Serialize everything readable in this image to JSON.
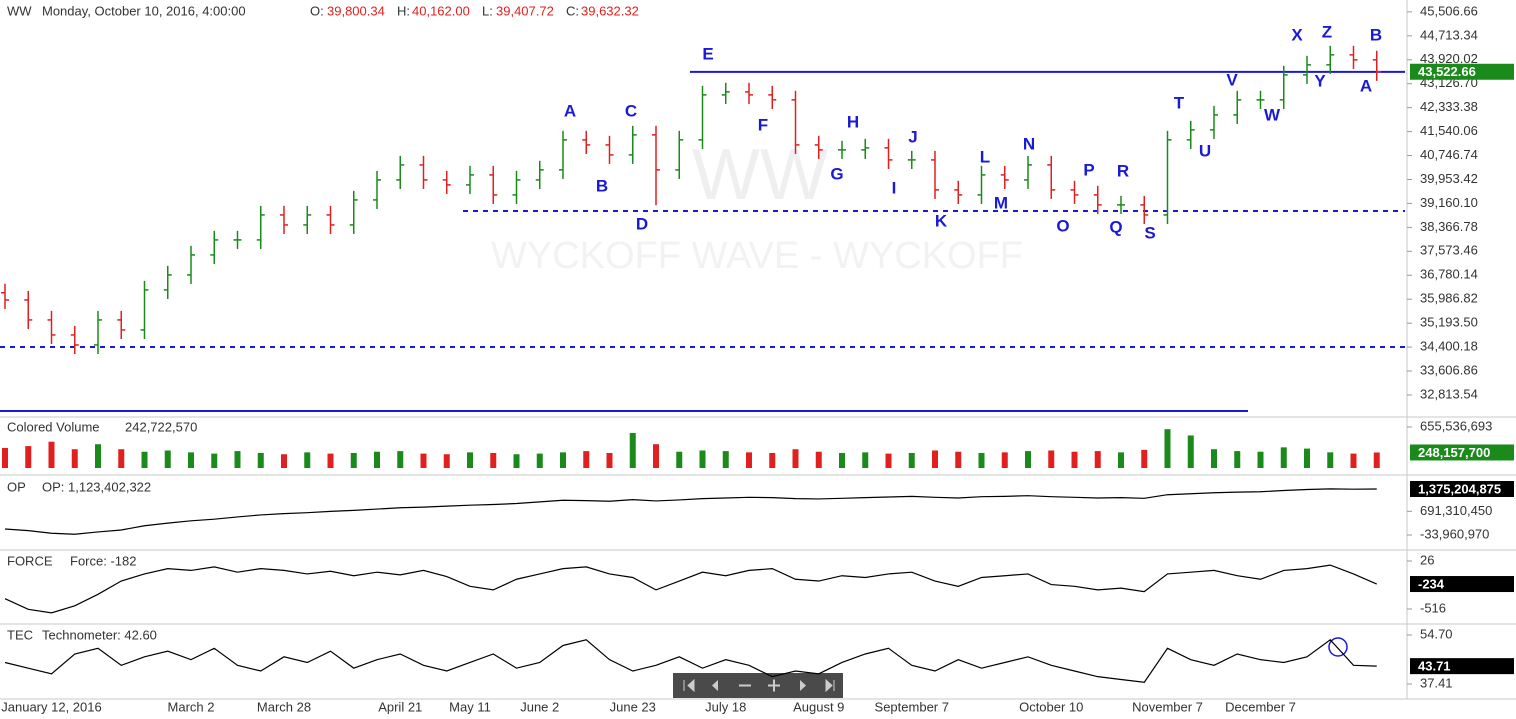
{
  "chart_data": [
    {
      "type": "ohlc",
      "title": "WW",
      "subtitle": "Monday, October 10, 2016, 4:00:00",
      "readout": [
        "O:",
        "39,800.34",
        "H:",
        "40,162.00",
        "L:",
        "39,407.72",
        "C:",
        "39,632.32"
      ],
      "watermark": [
        "WW",
        "WYCKOFF WAVE - WYCKOFF"
      ],
      "up_color": "#1a8a1a",
      "down_color": "#e0201e",
      "categories": [
        null,
        null,
        "January 12, 2016",
        null,
        null,
        null,
        null,
        null,
        "March 2",
        null,
        null,
        null,
        "March 28",
        null,
        null,
        null,
        null,
        "April 21",
        null,
        null,
        "May 11",
        null,
        null,
        "June 2",
        null,
        null,
        null,
        "June 23",
        null,
        null,
        null,
        "July 18",
        null,
        null,
        null,
        "August 9",
        null,
        null,
        null,
        "September 7",
        null,
        null,
        null,
        null,
        null,
        "October 10",
        null,
        null,
        null,
        null,
        "November 7",
        null,
        null,
        null,
        "December 7",
        null,
        null,
        null,
        null,
        null
      ],
      "open": [
        36200,
        35962,
        35300,
        34802,
        34471,
        35300,
        34968,
        36294,
        36791,
        37454,
        37951,
        37951,
        38779,
        38448,
        38779,
        38448,
        39276,
        39939,
        40436,
        39939,
        39774,
        40105,
        39442,
        39939,
        40271,
        41265,
        41099,
        40768,
        41431,
        40271,
        41265,
        42756,
        42856,
        42756,
        42591,
        41099,
        40934,
        40934,
        41000,
        40602,
        40602,
        39608,
        39442,
        40105,
        39939,
        40436,
        39608,
        39442,
        39111,
        39111,
        38779,
        41265,
        41596,
        42093,
        42591,
        42591,
        43419,
        43751,
        44082,
        43916
      ],
      "high": [
        36500,
        36262,
        35600,
        35102,
        35600,
        35600,
        36594,
        37091,
        37754,
        38251,
        38251,
        39079,
        39079,
        39079,
        39079,
        39576,
        40239,
        40736,
        40736,
        40239,
        40405,
        40405,
        40239,
        40571,
        41565,
        41565,
        41399,
        41731,
        41731,
        41565,
        43056,
        43156,
        43156,
        43056,
        42891,
        41399,
        41234,
        41300,
        41300,
        40902,
        40902,
        39908,
        40405,
        40405,
        40736,
        40736,
        39908,
        39742,
        39411,
        39411,
        41565,
        41896,
        42393,
        42891,
        42891,
        43719,
        44051,
        44382,
        44382,
        44216
      ],
      "low": [
        35662,
        35000,
        34502,
        34171,
        34171,
        34668,
        34668,
        35994,
        36491,
        37154,
        37651,
        37651,
        38148,
        38148,
        38148,
        38148,
        38976,
        39639,
        39639,
        39474,
        39474,
        39142,
        39142,
        39639,
        39971,
        40799,
        40468,
        40468,
        39100,
        39971,
        40965,
        42456,
        42456,
        42291,
        40799,
        40634,
        40634,
        40634,
        40302,
        40302,
        39308,
        39142,
        39142,
        39639,
        39639,
        39308,
        39142,
        38811,
        38811,
        38479,
        38479,
        40965,
        41296,
        41793,
        42291,
        42291,
        43119,
        43451,
        43616,
        43222
      ],
      "close": [
        35962,
        35300,
        34802,
        34471,
        35300,
        34968,
        36294,
        36791,
        37454,
        37951,
        37951,
        38779,
        38448,
        38779,
        38448,
        39276,
        39939,
        40436,
        39939,
        39774,
        40105,
        39442,
        39939,
        40271,
        41265,
        41099,
        40768,
        41431,
        40271,
        41265,
        42756,
        42856,
        42756,
        42591,
        41099,
        40934,
        40934,
        41000,
        40602,
        40602,
        39608,
        39442,
        40105,
        39939,
        40436,
        39608,
        39442,
        39111,
        39111,
        38779,
        41265,
        41596,
        42093,
        42591,
        42591,
        43419,
        43751,
        44082,
        43916,
        43522.66
      ],
      "last_label": "43,522.66",
      "ylim": [
        32150,
        45900
      ],
      "yticks": [
        {
          "value": 45506.66,
          "label": "45,506.66"
        },
        {
          "value": 44713.34,
          "label": "44,713.34"
        },
        {
          "value": 43920.02,
          "label": "43,920.02"
        },
        {
          "value": 43126.7,
          "label": "43,126.70"
        },
        {
          "value": 42333.38,
          "label": "42,333.38"
        },
        {
          "value": 41540.06,
          "label": "41,540.06"
        },
        {
          "value": 40746.74,
          "label": "40,746.74"
        },
        {
          "value": 39953.42,
          "label": "39,953.42"
        },
        {
          "value": 39160.1,
          "label": "39,160.10"
        },
        {
          "value": 38366.78,
          "label": "38,366.78"
        },
        {
          "value": 37573.46,
          "label": "37,573.46"
        },
        {
          "value": 36780.14,
          "label": "36,780.14"
        },
        {
          "value": 35986.82,
          "label": "35,986.82"
        },
        {
          "value": 35193.5,
          "label": "35,193.50"
        },
        {
          "value": 34400.18,
          "label": "34,400.18"
        },
        {
          "value": 33606.86,
          "label": "33,606.86"
        },
        {
          "value": 32813.54,
          "label": "32,813.54"
        }
      ],
      "hlines": [
        {
          "value": 43520,
          "style": "solid",
          "color": "#1a1ad6"
        },
        {
          "value": 38911,
          "style": "dashed",
          "color": "#1a1ad6"
        },
        {
          "value": 34404,
          "style": "dashed",
          "color": "#1a1ad6"
        },
        {
          "value": 32283,
          "style": "solid",
          "color": "#1a1ad6"
        }
      ],
      "annotations": [
        "E",
        "A",
        "C",
        "B",
        "D",
        "F",
        "H",
        "G",
        "J",
        "I",
        "L",
        "N",
        "K",
        "M",
        "P",
        "R",
        "O",
        "Q",
        "S",
        "T",
        "U",
        "V",
        "W",
        "X",
        "Z",
        "B",
        "Y",
        "A"
      ],
      "annotation_color": "#1a1ad6"
    },
    {
      "type": "bar",
      "title": "Colored Volume",
      "readout": "242,722,570",
      "values": [
        320000000,
        350000000,
        420000000,
        300000000,
        380000000,
        300000000,
        260000000,
        280000000,
        250000000,
        230000000,
        270000000,
        240000000,
        220000000,
        250000000,
        230000000,
        240000000,
        260000000,
        270000000,
        230000000,
        220000000,
        250000000,
        240000000,
        220000000,
        230000000,
        250000000,
        270000000,
        240000000,
        560000000,
        380000000,
        260000000,
        280000000,
        270000000,
        250000000,
        240000000,
        300000000,
        260000000,
        240000000,
        250000000,
        230000000,
        240000000,
        280000000,
        260000000,
        240000000,
        250000000,
        270000000,
        280000000,
        260000000,
        270000000,
        250000000,
        290000000,
        620000000,
        520000000,
        300000000,
        270000000,
        260000000,
        330000000,
        310000000,
        250000000,
        230000000,
        248157700
      ],
      "last_label": "248,157,700",
      "ylim": [
        0,
        767000000
      ],
      "yticks": [
        {
          "value": 655536693,
          "label": "655,536,693"
        }
      ]
    },
    {
      "type": "line",
      "title": "OP",
      "readout": "OP: 1,123,402,322",
      "color": "#000000",
      "values": [
        150000000,
        100000000,
        20000000,
        -10000000,
        60000000,
        120000000,
        250000000,
        330000000,
        400000000,
        450000000,
        520000000,
        580000000,
        620000000,
        650000000,
        690000000,
        720000000,
        760000000,
        800000000,
        820000000,
        850000000,
        880000000,
        900000000,
        930000000,
        980000000,
        1030000000,
        1020000000,
        1000000000,
        1050000000,
        1010000000,
        1040000000,
        1080000000,
        1100000000,
        1120000000,
        1110000000,
        1080000000,
        1070000000,
        1090000000,
        1110000000,
        1130000000,
        1150000000,
        1120000000,
        1100000000,
        1140000000,
        1150000000,
        1170000000,
        1140000000,
        1120000000,
        1100000000,
        1110000000,
        1090000000,
        1200000000,
        1230000000,
        1260000000,
        1280000000,
        1290000000,
        1330000000,
        1360000000,
        1380000000,
        1370000000,
        1375204875
      ],
      "last_label": "1,375,204,875",
      "ylim": [
        -432000000,
        1712000000
      ],
      "yticks": [
        {
          "value": 691310450,
          "label": "691,310,450"
        },
        {
          "value": -33960970,
          "label": "-33,960,970"
        }
      ]
    },
    {
      "type": "line",
      "title": "FORCE",
      "readout": "Force: -182",
      "color": "#000000",
      "values": [
        -400,
        -520,
        -560,
        -480,
        -350,
        -200,
        -120,
        -60,
        -80,
        -40,
        -100,
        -60,
        -80,
        -120,
        -90,
        -140,
        -100,
        -130,
        -80,
        -150,
        -260,
        -300,
        -180,
        -120,
        -60,
        -40,
        -120,
        -160,
        -300,
        -200,
        -100,
        -140,
        -80,
        -60,
        -180,
        -200,
        -140,
        -160,
        -120,
        -100,
        -200,
        -260,
        -160,
        -140,
        -120,
        -240,
        -260,
        -300,
        -280,
        -320,
        -120,
        -100,
        -80,
        -140,
        -180,
        -80,
        -60,
        -20,
        -120,
        -234
      ],
      "ylim": [
        -663,
        128
      ],
      "yticks": [
        26,
        -516
      ]
    },
    {
      "type": "line",
      "title": "TEC",
      "readout": "Technometer: 42.60",
      "color": "#000000",
      "values": [
        45,
        43,
        41,
        48,
        50,
        44,
        47,
        49,
        46,
        50,
        44,
        42,
        47,
        45,
        49,
        43,
        46,
        48,
        44,
        42,
        45,
        48,
        43,
        45,
        51,
        53,
        46,
        42,
        44,
        47,
        43,
        46,
        44,
        40,
        42,
        41,
        45,
        48,
        50,
        44,
        42,
        46,
        43,
        45,
        47,
        44,
        42,
        40,
        39,
        38,
        50,
        46,
        44,
        48,
        46,
        45,
        47,
        53,
        44,
        43.71
      ],
      "ylim": [
        31.76,
        57.88
      ],
      "yticks": [
        {
          "value": 54.7,
          "label": "54.70"
        },
        37.41
      ]
    }
  ]
}
